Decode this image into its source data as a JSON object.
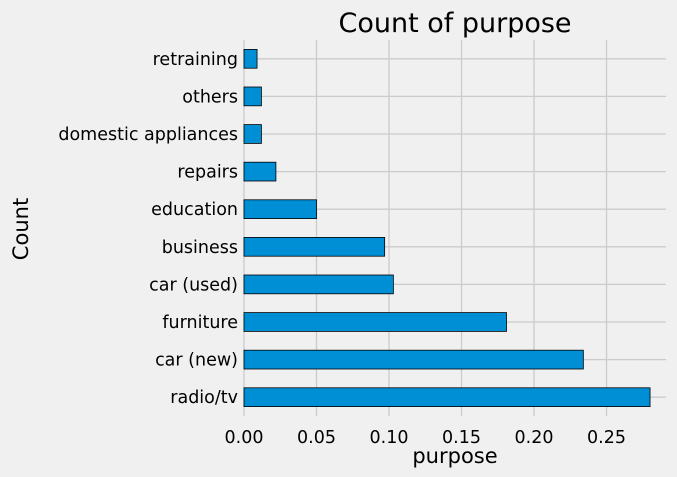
{
  "chart_data": {
    "type": "bar",
    "orientation": "horizontal",
    "title": "Count of purpose",
    "xlabel": "purpose",
    "ylabel": "Count",
    "categories": [
      "radio/tv",
      "car (new)",
      "furniture",
      "car (used)",
      "business",
      "education",
      "repairs",
      "domestic appliances",
      "others",
      "retraining"
    ],
    "values": [
      0.28,
      0.234,
      0.181,
      0.103,
      0.097,
      0.05,
      0.022,
      0.012,
      0.012,
      0.009
    ],
    "xlim": [
      0,
      0.291
    ],
    "xticks": [
      0.0,
      0.05,
      0.1,
      0.15,
      0.2,
      0.25
    ],
    "xtick_labels": [
      "0.00",
      "0.05",
      "0.10",
      "0.15",
      "0.20",
      "0.25"
    ],
    "grid": true,
    "legend": "none",
    "colors": {
      "bar": "#008fd5",
      "background": "#f0f0f0",
      "grid": "#cbcbcb"
    }
  }
}
